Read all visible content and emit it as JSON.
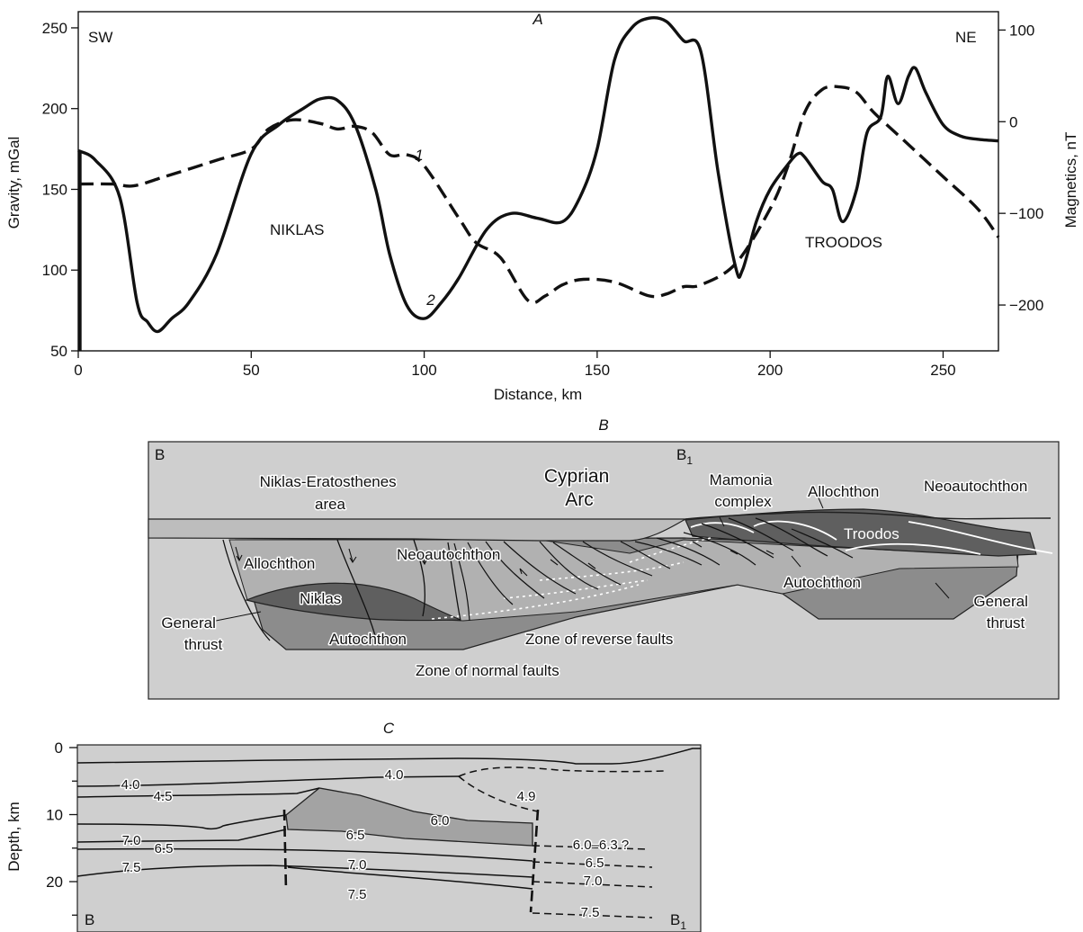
{
  "panels": {
    "a": "A",
    "b": "B",
    "c": "C"
  },
  "panel_a": {
    "sw": "SW",
    "ne": "NE",
    "xlabel": "Distance, km",
    "ylabel_left": "Gravity, mGal",
    "ylabel_right": "Magnetics, nT",
    "niklas": "NIKLAS",
    "troodos": "TROODOS",
    "curve1_label": "1",
    "curve2_label": "2"
  },
  "panel_b": {
    "b": "B",
    "b1": "B",
    "b1_sub": "1",
    "niklas_area_1": "Niklas-Eratosthenes",
    "niklas_area_2": "area",
    "cyprian_1": "Cyprian",
    "cyprian_2": "Arc",
    "mamonia_1": "Mamonia",
    "mamonia_2": "complex",
    "allochthon_right": "Allochthon",
    "neoautochthon_right": "Neoautochthon",
    "allochthon_left": "Allochthon",
    "neoautochthon_mid": "Neoautochthon",
    "troodos": "Troodos",
    "autochthon_right": "Autochthon",
    "niklas": "Niklas",
    "general_thrust_left_1": "General",
    "general_thrust_left_2": "thrust",
    "general_thrust_right_1": "General",
    "general_thrust_right_2": "thrust",
    "autochthon_left": "Autochthon",
    "reverse_faults": "Zone of reverse faults",
    "normal_faults": "Zone of normal faults"
  },
  "panel_c": {
    "ylabel": "Depth, km",
    "b": "B",
    "b1": "B",
    "b1_sub": "1",
    "ticks": [
      "0",
      "10",
      "20"
    ],
    "velocities": [
      "4.0",
      "4.5",
      "4.0",
      "4.9",
      "6.0",
      "6.5",
      "7.0",
      "6.5",
      "7.5",
      "7.0",
      "7.5",
      "6.0–6.3 ?",
      "6.5",
      "7.0",
      "7.5"
    ]
  },
  "colors": {
    "section_fill": "#cfcfcf",
    "allochthon": "#b4b4b4",
    "autochthon": "#8c8c8c",
    "nappe_dark": "#5f5f5f",
    "ink": "#111111"
  },
  "chart_data": {
    "type": "line",
    "xlabel": "Distance, km",
    "ylabel": "Gravity, mGal",
    "ylabel_right": "Magnetics, nT",
    "xlim": [
      0,
      266
    ],
    "ylim": [
      50,
      260
    ],
    "ylim_right": [
      -250,
      120
    ],
    "x_ticks": [
      0,
      50,
      100,
      150,
      200,
      250
    ],
    "y_ticks": [
      50,
      100,
      150,
      200,
      250
    ],
    "y_ticks_right": [
      100,
      0,
      -100,
      -200
    ],
    "series": [
      {
        "name": "1",
        "axis": "right",
        "style": "dashed",
        "x": [
          0,
          10,
          16,
          25,
          40,
          50,
          55,
          62,
          70,
          75,
          80,
          85,
          90,
          95,
          100,
          110,
          115,
          122,
          130,
          135,
          140,
          146,
          155,
          165,
          170,
          175,
          180,
          190,
          200,
          205,
          210,
          215,
          220,
          225,
          230,
          240,
          250,
          260,
          266
        ],
        "values": [
          -68,
          -68,
          -70,
          -60,
          -42,
          -30,
          -8,
          2,
          -2,
          -8,
          -5,
          -12,
          -36,
          -36,
          -48,
          -105,
          -132,
          -148,
          -195,
          -190,
          -178,
          -172,
          -175,
          -190,
          -188,
          -180,
          -178,
          -155,
          -95,
          -50,
          10,
          35,
          38,
          32,
          10,
          -25,
          -60,
          -95,
          -126
        ]
      },
      {
        "name": "2",
        "axis": "left",
        "style": "solid",
        "x": [
          0,
          5,
          12,
          17,
          20,
          23,
          27,
          32,
          40,
          50,
          58,
          65,
          70,
          75,
          80,
          86,
          90,
          95,
          100,
          105,
          110,
          118,
          125,
          133,
          140,
          145,
          150,
          155,
          160,
          165,
          170,
          175,
          180,
          185,
          190,
          192,
          196,
          200,
          205,
          208,
          210,
          215,
          218,
          221,
          225,
          228,
          232,
          234,
          237,
          240,
          242,
          245,
          250,
          255,
          260,
          266
        ],
        "values": [
          174,
          168,
          145,
          80,
          68,
          62,
          70,
          80,
          110,
          172,
          190,
          200,
          206,
          205,
          190,
          150,
          110,
          78,
          70,
          80,
          95,
          125,
          135,
          132,
          130,
          145,
          175,
          230,
          250,
          256,
          254,
          242,
          235,
          160,
          102,
          100,
          130,
          150,
          165,
          172,
          170,
          155,
          150,
          130,
          150,
          185,
          195,
          220,
          203,
          220,
          225,
          210,
          190,
          183,
          181,
          180
        ]
      }
    ]
  }
}
